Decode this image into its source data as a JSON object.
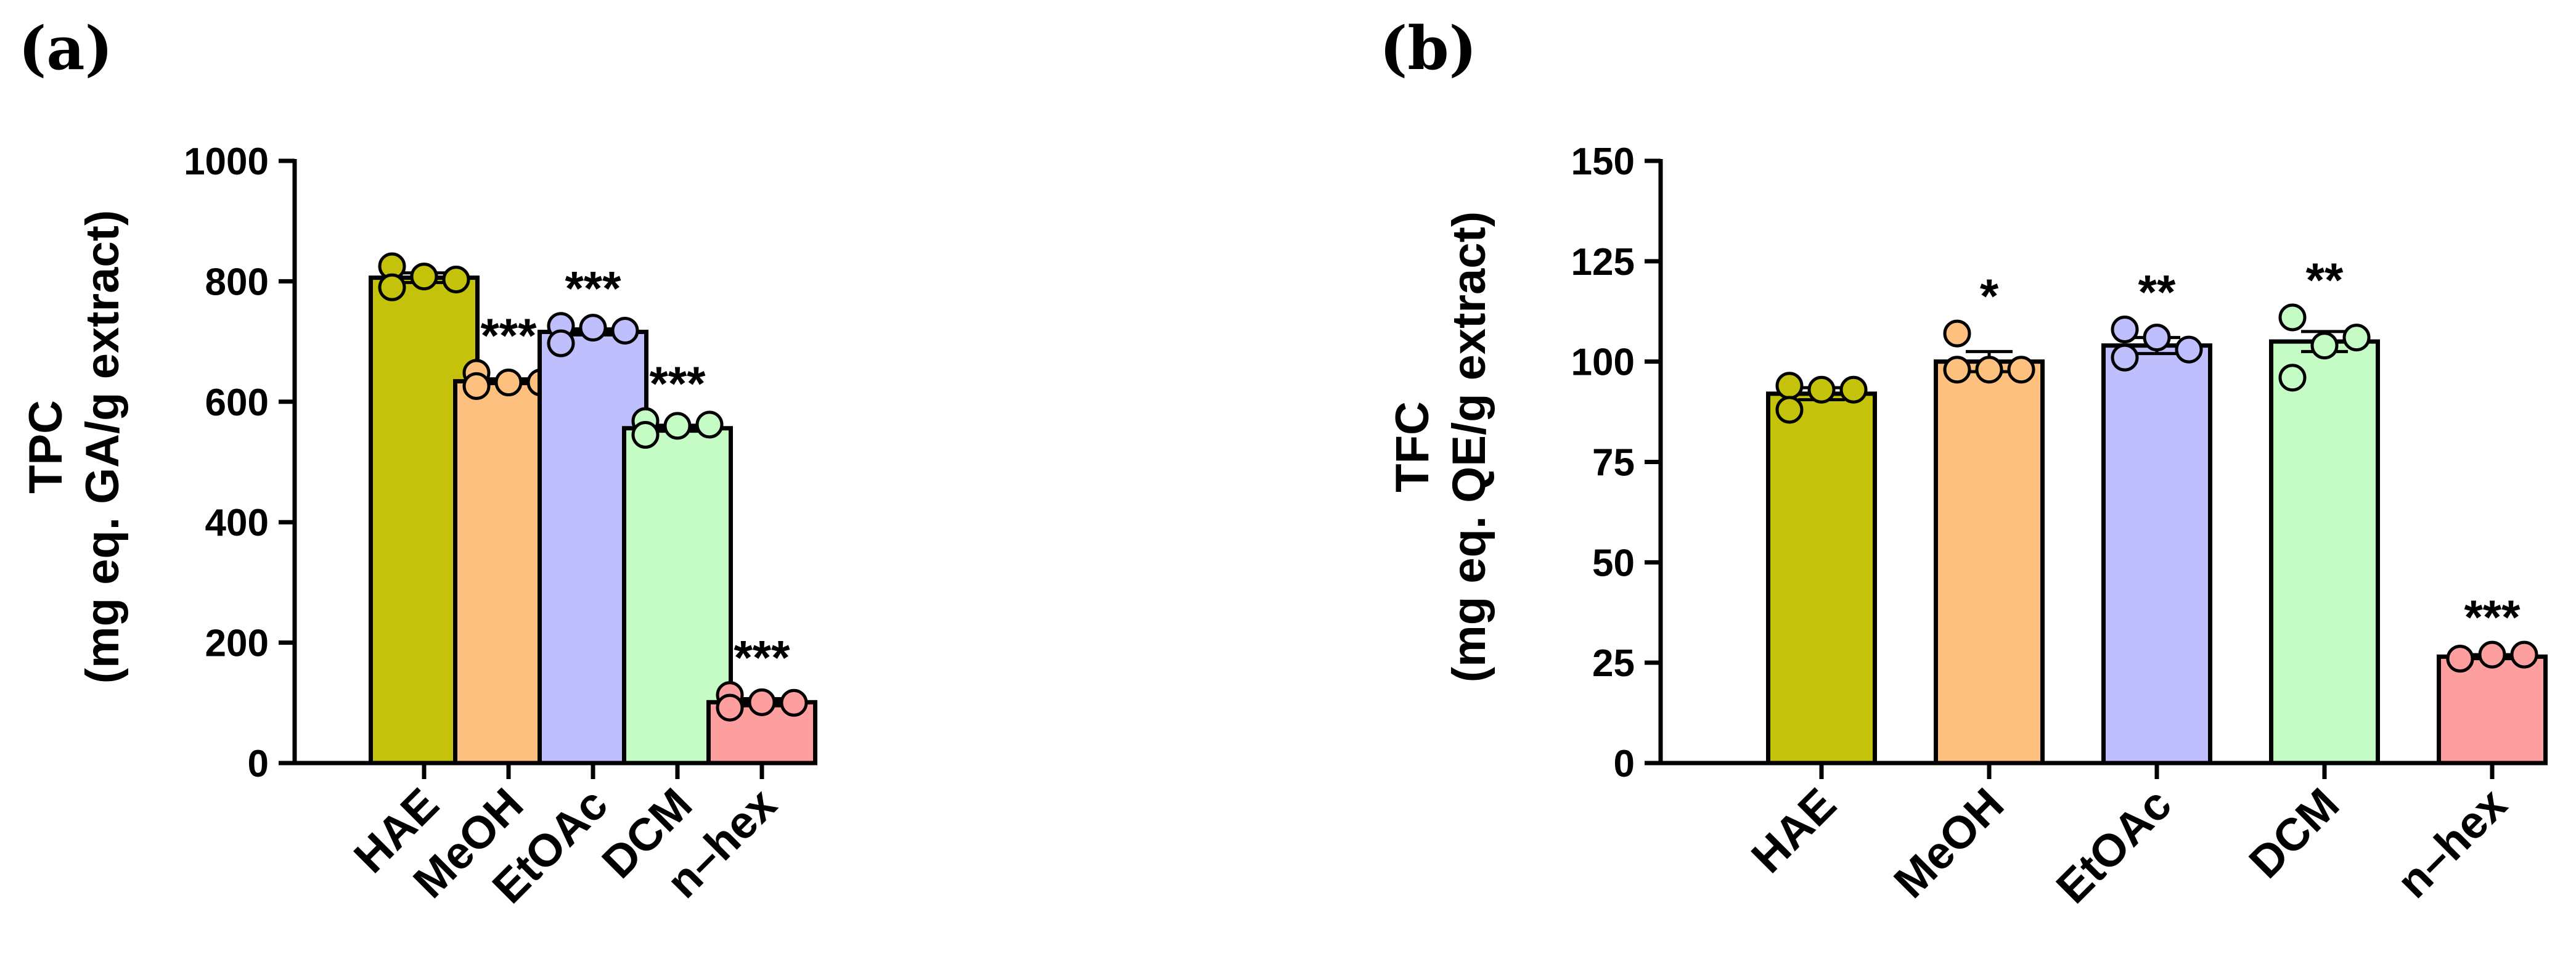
{
  "chart_data": [
    {
      "type": "bar",
      "panel_label": "(a)",
      "ylabel": [
        "TPC",
        "(mg eq. GA/g extract)"
      ],
      "xlabel": "",
      "categories": [
        "HAE",
        "MeOH",
        "EtOAc",
        "DCM",
        "n–hex"
      ],
      "values": [
        806,
        634,
        716,
        556,
        101
      ],
      "errors": [
        8,
        4,
        5,
        5,
        6
      ],
      "points": [
        [
          825,
          790,
          808,
          803
        ],
        [
          648,
          626,
          632,
          632
        ],
        [
          726,
          697,
          723,
          718
        ],
        [
          568,
          545,
          560,
          562
        ],
        [
          113,
          92,
          101,
          100
        ]
      ],
      "significance": [
        "",
        "***",
        "***",
        "***",
        "***"
      ],
      "ylim": [
        0,
        1000
      ],
      "yticks": [
        "0",
        "200",
        "400",
        "600",
        "800",
        "1000"
      ],
      "ytick_values": [
        0,
        200,
        400,
        600,
        800,
        1000
      ],
      "colors": [
        "#c4c20a",
        "#fec07f",
        "#c0bffd",
        "#c5fcc6",
        "#fd9f9f"
      ],
      "legend": "none",
      "grid": false
    },
    {
      "type": "bar",
      "panel_label": "(b)",
      "ylabel": [
        "TFC",
        "(mg eq. QE/g extract)"
      ],
      "xlabel": "",
      "categories": [
        "HAE",
        "MeOH",
        "EtOAc",
        "DCM",
        "n–hex"
      ],
      "values": [
        92,
        100,
        104,
        105,
        26.5
      ],
      "errors": [
        1.5,
        2.5,
        2,
        2.5,
        0.5
      ],
      "points": [
        [
          94,
          88,
          93,
          93
        ],
        [
          107,
          98,
          98,
          98
        ],
        [
          108,
          101,
          106,
          103
        ],
        [
          111,
          96,
          104,
          106
        ],
        [
          26,
          26,
          27,
          27
        ]
      ],
      "significance": [
        "",
        "*",
        "**",
        "**",
        "***"
      ],
      "ylim": [
        0,
        150
      ],
      "yticks": [
        "0",
        "25",
        "50",
        "75",
        "100",
        "125",
        "150"
      ],
      "ytick_values": [
        0,
        25,
        50,
        75,
        100,
        125,
        150
      ],
      "colors": [
        "#c4c20a",
        "#fec07f",
        "#c0bffd",
        "#c5fcc6",
        "#fd9f9f"
      ],
      "legend": "none",
      "grid": false
    }
  ]
}
